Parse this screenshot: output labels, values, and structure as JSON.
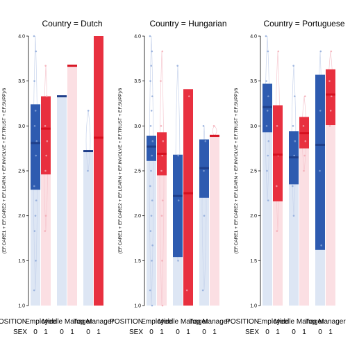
{
  "chart_data": {
    "type": "bar",
    "ylabel": "(EF.CARE1 + EF.CARE2 + EF.LEARN + EF.INVOLVE + EF.TRUST + EF.SUPP)/6",
    "ylim": [
      1.0,
      4.0
    ],
    "yticks": [
      "1.0",
      "1.5",
      "2.0",
      "2.5",
      "3.0",
      "3.5",
      "4.0"
    ],
    "row_labels": {
      "position": "POSITION",
      "sex": "SEX"
    },
    "categories": [
      "Employee",
      "Middle Manager",
      "Top Manager"
    ],
    "sex_levels": [
      "0",
      "1"
    ],
    "colors": {
      "sex0": "#2e5bb0",
      "sex1": "#e8303f",
      "sex0_light": "#dde6f4",
      "sex1_light": "#fbdfe3"
    },
    "panels": [
      {
        "title": "Country = Dutch",
        "groups": [
          {
            "category": "Employee",
            "sex0": {
              "mean": 2.81,
              "lower": 2.29,
              "upper": 3.24,
              "points": [
                4.0,
                3.83,
                3.5,
                3.17,
                3.0,
                2.83,
                2.67,
                2.33,
                2.17,
                2.0,
                1.83,
                1.5,
                1.17
              ]
            },
            "sex1": {
              "mean": 2.97,
              "lower": 2.46,
              "upper": 3.33,
              "points": [
                3.67,
                3.33,
                3.0,
                2.83,
                2.67,
                2.5,
                2.0,
                1.83
              ]
            }
          },
          {
            "category": "Middle Manager",
            "sex0": {
              "mean": 3.33,
              "lower": null,
              "upper": null,
              "points": [
                3.33
              ]
            },
            "sex1": {
              "mean": 3.67,
              "lower": null,
              "upper": null,
              "points": [
                3.67
              ]
            }
          },
          {
            "category": "Top Manager",
            "sex0": {
              "mean": 2.72,
              "lower": null,
              "upper": null,
              "points": [
                3.17,
                2.5
              ]
            },
            "sex1": {
              "mean": 2.87,
              "lower": 1.0,
              "upper": 4.0,
              "points": [
                2.87
              ]
            }
          }
        ]
      },
      {
        "title": "Country = Hungarian",
        "groups": [
          {
            "category": "Employee",
            "sex0": {
              "mean": 2.77,
              "lower": 2.61,
              "upper": 2.89,
              "points": [
                4.0,
                3.83,
                3.67,
                3.5,
                3.33,
                3.17,
                3.0,
                2.83,
                2.67,
                2.5,
                2.33,
                2.17,
                2.0,
                1.83,
                1.67,
                1.5,
                1.17,
                1.0
              ]
            },
            "sex1": {
              "mean": 2.69,
              "lower": 2.45,
              "upper": 2.93,
              "points": [
                3.83,
                3.5,
                3.0,
                2.83,
                2.67,
                2.5,
                2.17,
                2.0,
                1.5,
                1.0
              ]
            }
          },
          {
            "category": "Middle Manager",
            "sex0": {
              "mean": 2.22,
              "lower": 1.54,
              "upper": 2.68,
              "points": [
                3.67,
                2.67,
                2.17,
                1.5
              ]
            },
            "sex1": {
              "mean": 2.25,
              "lower": 1.0,
              "upper": 3.41,
              "points": [
                3.33,
                2.25,
                1.17
              ]
            }
          },
          {
            "category": "Top Manager",
            "sex0": {
              "mean": 2.53,
              "lower": 2.2,
              "upper": 2.85,
              "points": [
                3.0,
                2.83,
                2.5,
                2.0,
                1.17
              ]
            },
            "sex1": {
              "mean": 2.89,
              "lower": null,
              "upper": null,
              "points": [
                3.0,
                2.89
              ]
            }
          }
        ]
      },
      {
        "title": "Country = Portuguese",
        "groups": [
          {
            "category": "Employee",
            "sex0": {
              "mean": 3.21,
              "lower": 2.93,
              "upper": 3.47,
              "points": [
                4.0,
                3.83,
                3.5,
                3.33,
                3.17,
                3.0,
                2.83,
                2.67,
                2.5,
                2.17
              ]
            },
            "sex1": {
              "mean": 2.68,
              "lower": 2.16,
              "upper": 3.23,
              "points": [
                3.83,
                3.0,
                2.67,
                2.33,
                1.83
              ]
            }
          },
          {
            "category": "Middle Manager",
            "sex0": {
              "mean": 2.65,
              "lower": 2.35,
              "upper": 2.94,
              "points": [
                3.67,
                3.33,
                3.0,
                2.83,
                2.67,
                2.33,
                2.0
              ]
            },
            "sex1": {
              "mean": 2.92,
              "lower": 2.75,
              "upper": 3.1,
              "points": [
                3.33,
                3.0,
                2.83,
                2.67,
                2.5
              ]
            }
          },
          {
            "category": "Top Manager",
            "sex0": {
              "mean": 2.79,
              "lower": 1.62,
              "upper": 3.57,
              "points": [
                3.83,
                3.17,
                2.5,
                1.67
              ]
            },
            "sex1": {
              "mean": 3.35,
              "lower": 3.01,
              "upper": 3.63,
              "points": [
                3.83,
                3.5,
                3.33,
                3.17,
                3.0
              ]
            }
          }
        ]
      }
    ]
  }
}
